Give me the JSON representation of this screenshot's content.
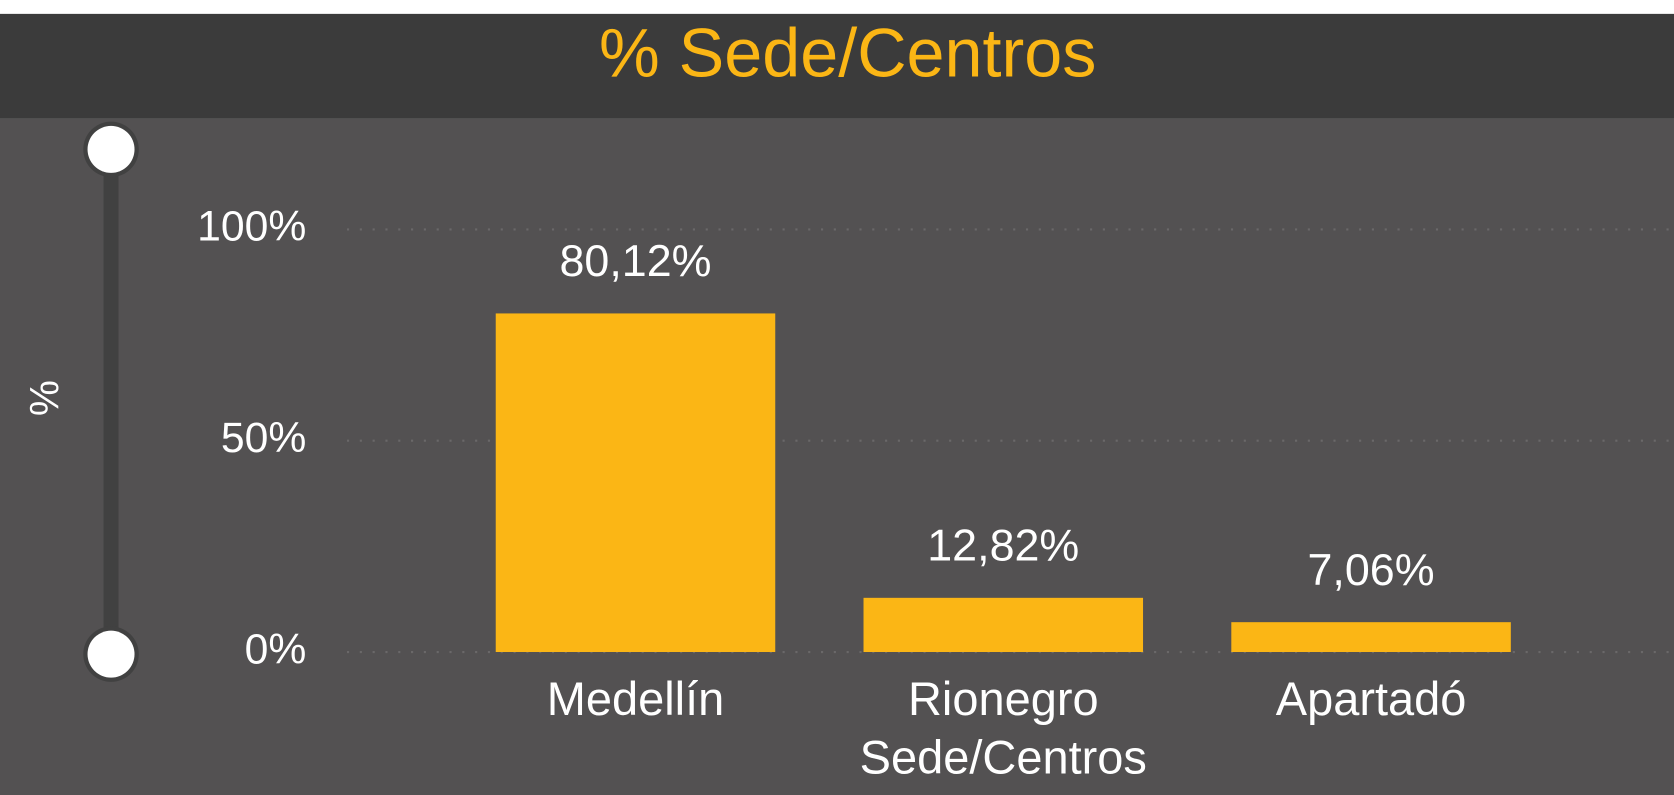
{
  "chart_data": {
    "type": "bar",
    "title": "% Sede/Centros",
    "y_label": "%",
    "categories": [
      "Medellín",
      "Rionegro Sede/Centros",
      "Apartadó"
    ],
    "values": [
      80.12,
      12.82,
      7.06
    ],
    "value_labels": [
      "80,12%",
      "12,82%",
      "7,06%"
    ],
    "color": "#fbb615",
    "ylim": [
      0,
      100
    ],
    "yticks": [
      {
        "value": 0,
        "label": "0%"
      },
      {
        "value": 50,
        "label": "50%"
      },
      {
        "value": 100,
        "label": "100%"
      }
    ],
    "grid": true
  }
}
